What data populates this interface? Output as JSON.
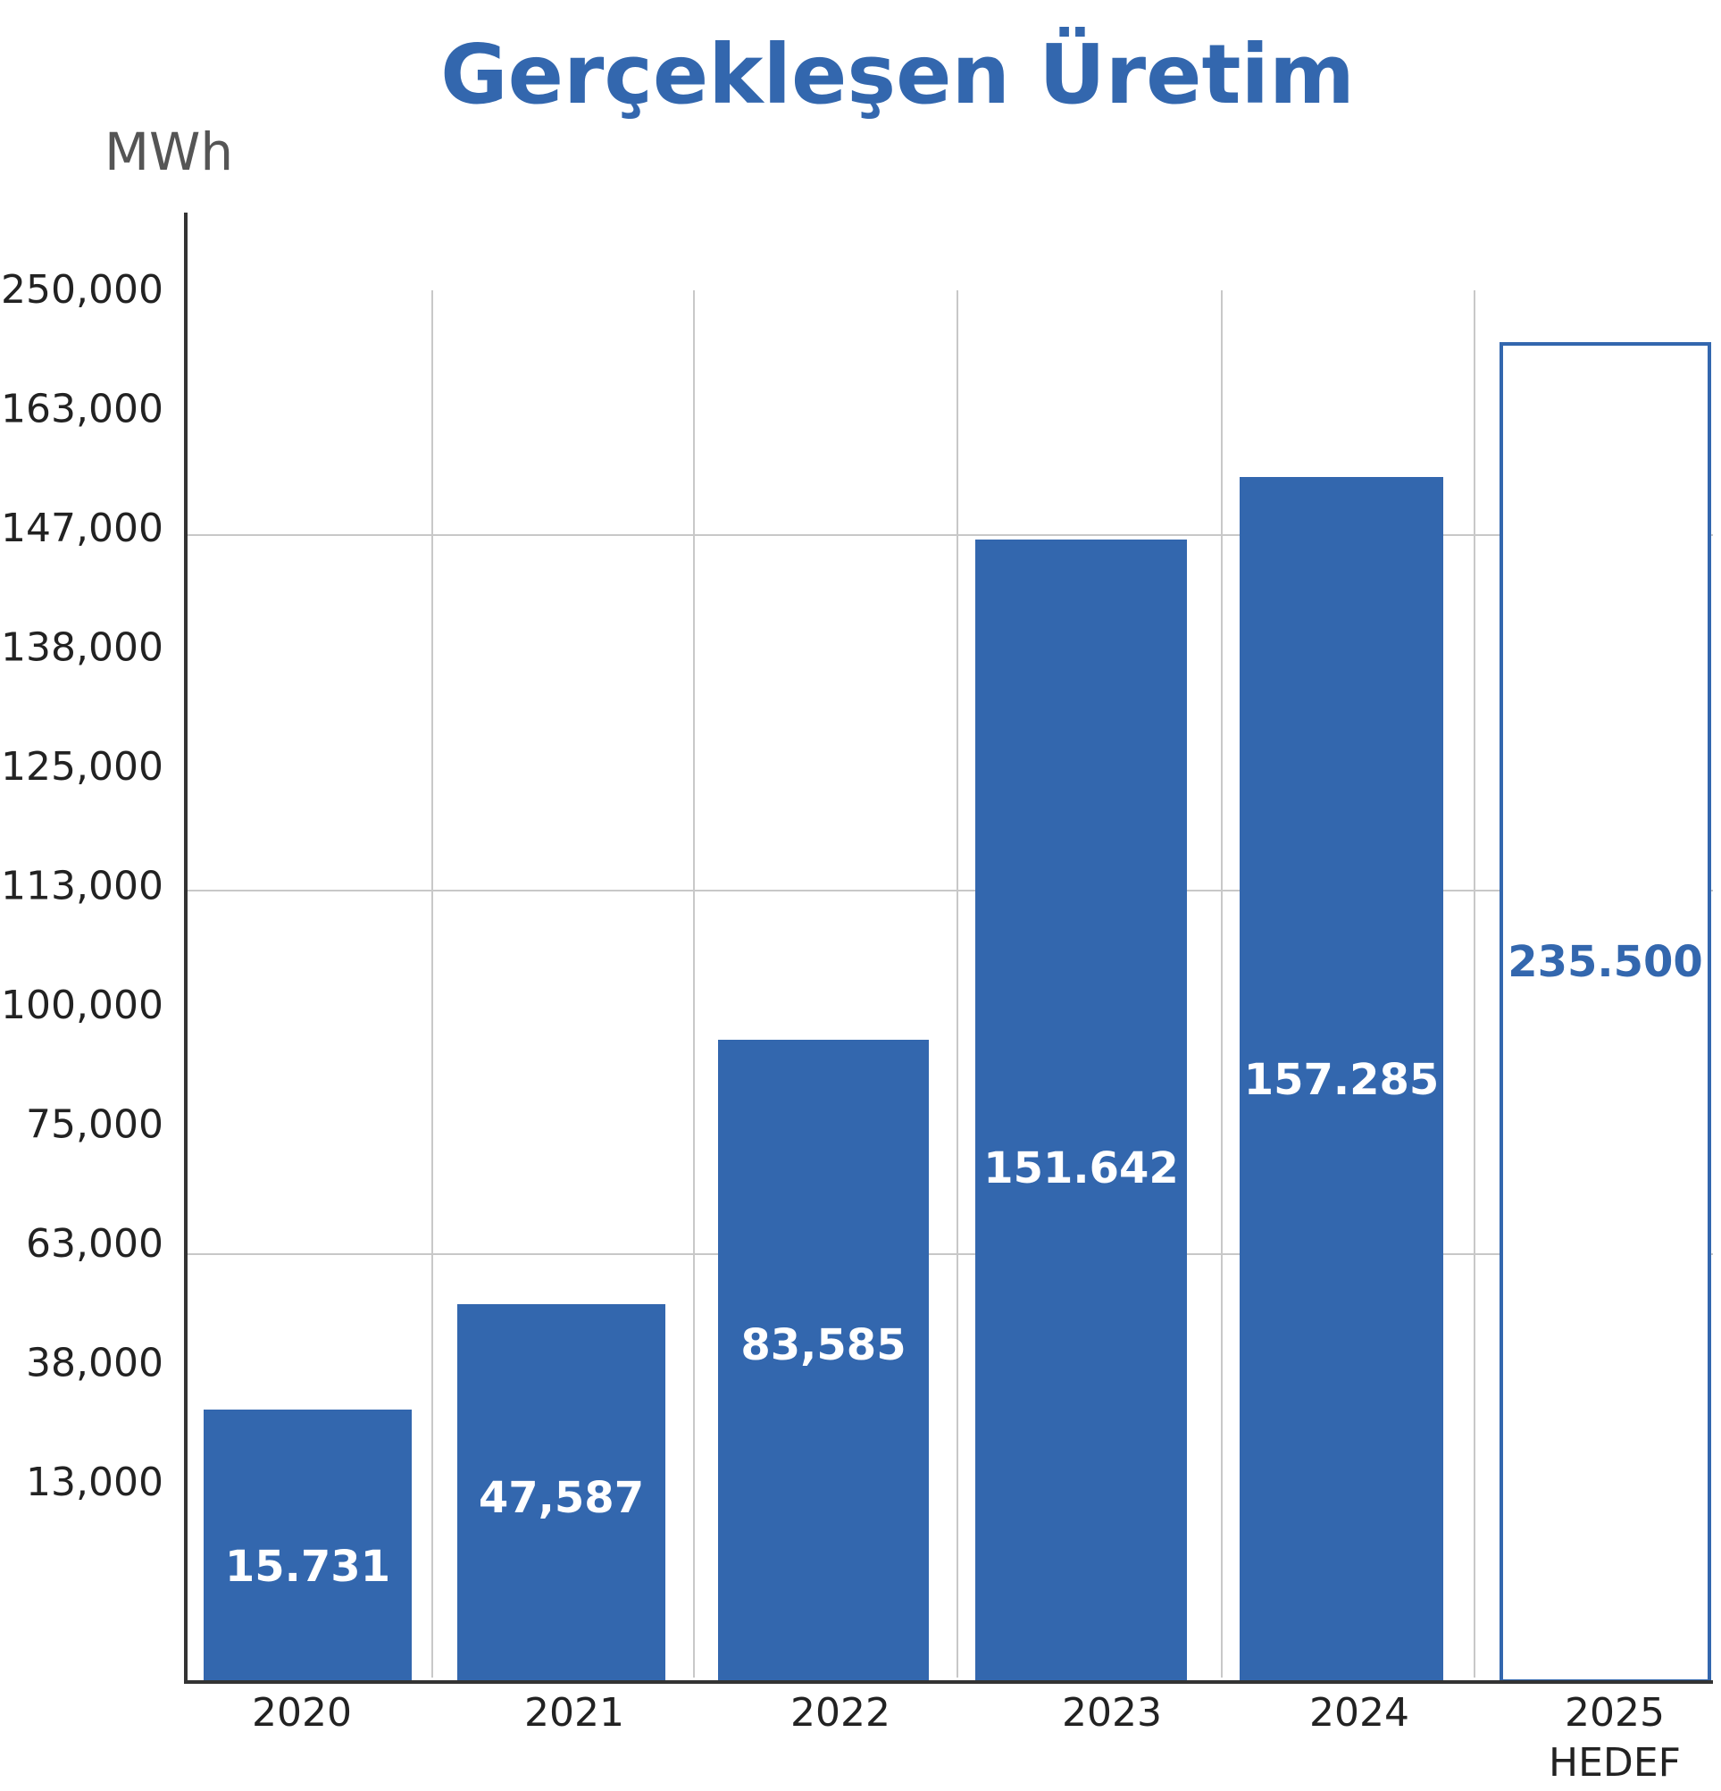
{
  "chart_data": {
    "type": "bar",
    "title": "Gerçekleşen Üretim",
    "ylabel": "MWh",
    "xlabel": "",
    "y_tick_labels": [
      "250,000",
      "163,000",
      "147,000",
      "138,000",
      "125,000",
      "113,000",
      "100,000",
      "75,000",
      "63,000",
      "38,000",
      "13,000"
    ],
    "categories": [
      "2020",
      "2021",
      "2022",
      "2023",
      "2024",
      "2025"
    ],
    "category_sublabels": [
      "",
      "",
      "",
      "",
      "",
      "HEDEF"
    ],
    "values": [
      15731,
      47587,
      83585,
      151642,
      157285,
      235500
    ],
    "value_labels": [
      "15.731",
      "47,587",
      "83,585",
      "151.642",
      "157.285",
      "235.500"
    ],
    "bar_styles": [
      "filled",
      "filled",
      "filled",
      "filled",
      "filled",
      "outline"
    ],
    "grid": true,
    "legend": "none"
  },
  "colors": {
    "accent": "#3367ae",
    "grid": "#c8c8c8",
    "axis": "#333333"
  }
}
